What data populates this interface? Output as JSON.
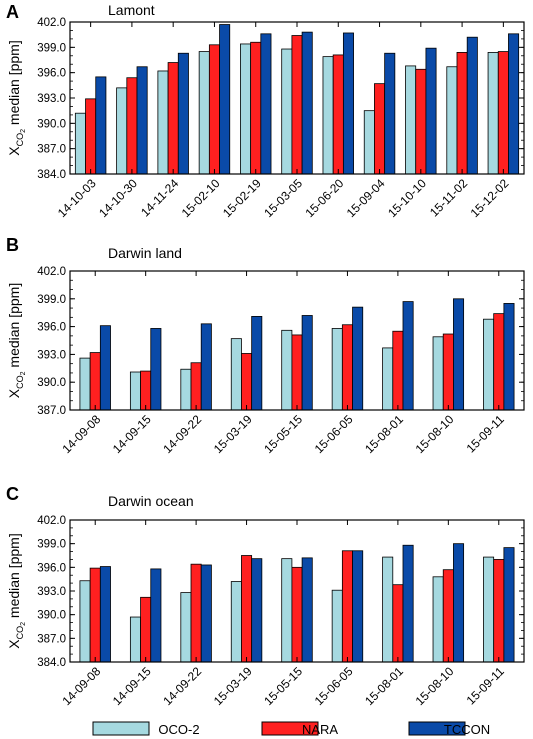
{
  "figure": {
    "ylabel": "median [ppm]",
    "ylabel_symbol": "X",
    "ylabel_sub": "CO",
    "ylabel_subsub": "2"
  },
  "legend": {
    "placement": "bottom",
    "items": [
      "OCO-2",
      "NARA",
      "TCCON"
    ]
  },
  "colors": {
    "OCO-2": "#a6d9e0",
    "NARA": "#ff2020",
    "TCCON": "#0a4aa8"
  },
  "chart_data": [
    {
      "panel_letter": "A",
      "type": "bar",
      "title": "Lamont",
      "ylim": [
        384.0,
        402.0
      ],
      "yticks": [
        "384.0",
        "387.0",
        "390.0",
        "393.0",
        "396.0",
        "399.0",
        "402.0"
      ],
      "categories": [
        "14-10-03",
        "14-10-30",
        "14-11-24",
        "15-02-10",
        "15-02-19",
        "15-03-05",
        "15-06-20",
        "15-09-04",
        "15-10-10",
        "15-11-02",
        "15-12-02"
      ],
      "series": [
        {
          "name": "OCO-2",
          "values": [
            391.2,
            394.2,
            396.2,
            398.5,
            399.4,
            398.8,
            397.9,
            391.5,
            396.8,
            396.7,
            398.4
          ]
        },
        {
          "name": "NARA",
          "values": [
            392.9,
            395.4,
            397.2,
            399.3,
            399.6,
            400.4,
            398.1,
            394.7,
            396.4,
            398.4,
            398.5
          ]
        },
        {
          "name": "TCCON",
          "values": [
            395.5,
            396.7,
            398.3,
            401.7,
            400.6,
            400.8,
            400.7,
            398.3,
            398.9,
            400.2,
            400.6
          ]
        }
      ]
    },
    {
      "panel_letter": "B",
      "type": "bar",
      "title": "Darwin land",
      "ylim": [
        387.0,
        402.0
      ],
      "yticks": [
        "387.0",
        "390.0",
        "393.0",
        "396.0",
        "399.0",
        "402.0"
      ],
      "categories": [
        "14-09-08",
        "14-09-15",
        "14-09-22",
        "15-03-19",
        "15-05-15",
        "15-06-05",
        "15-08-01",
        "15-08-10",
        "15-09-11"
      ],
      "series": [
        {
          "name": "OCO-2",
          "values": [
            392.6,
            391.1,
            391.4,
            394.7,
            395.6,
            395.8,
            393.7,
            394.9,
            396.8
          ]
        },
        {
          "name": "NARA",
          "values": [
            393.2,
            391.2,
            392.1,
            393.1,
            395.1,
            396.2,
            395.5,
            395.2,
            397.4
          ]
        },
        {
          "name": "TCCON",
          "values": [
            396.1,
            395.8,
            396.3,
            397.1,
            397.2,
            398.1,
            398.7,
            399.0,
            398.5
          ]
        }
      ]
    },
    {
      "panel_letter": "C",
      "type": "bar",
      "title": "Darwin ocean",
      "ylim": [
        384.0,
        402.0
      ],
      "yticks": [
        "384.0",
        "387.0",
        "390.0",
        "393.0",
        "396.0",
        "399.0",
        "402.0"
      ],
      "categories": [
        "14-09-08",
        "14-09-15",
        "14-09-22",
        "15-03-19",
        "15-05-15",
        "15-06-05",
        "15-08-01",
        "15-08-10",
        "15-09-11"
      ],
      "series": [
        {
          "name": "OCO-2",
          "values": [
            394.3,
            389.7,
            392.8,
            394.2,
            397.1,
            393.1,
            397.3,
            394.8,
            397.3
          ]
        },
        {
          "name": "NARA",
          "values": [
            395.9,
            392.2,
            396.4,
            397.5,
            396.0,
            398.1,
            393.8,
            395.7,
            397.0
          ]
        },
        {
          "name": "TCCON",
          "values": [
            396.1,
            395.8,
            396.3,
            397.1,
            397.2,
            398.1,
            398.8,
            399.0,
            398.5
          ]
        }
      ]
    }
  ]
}
